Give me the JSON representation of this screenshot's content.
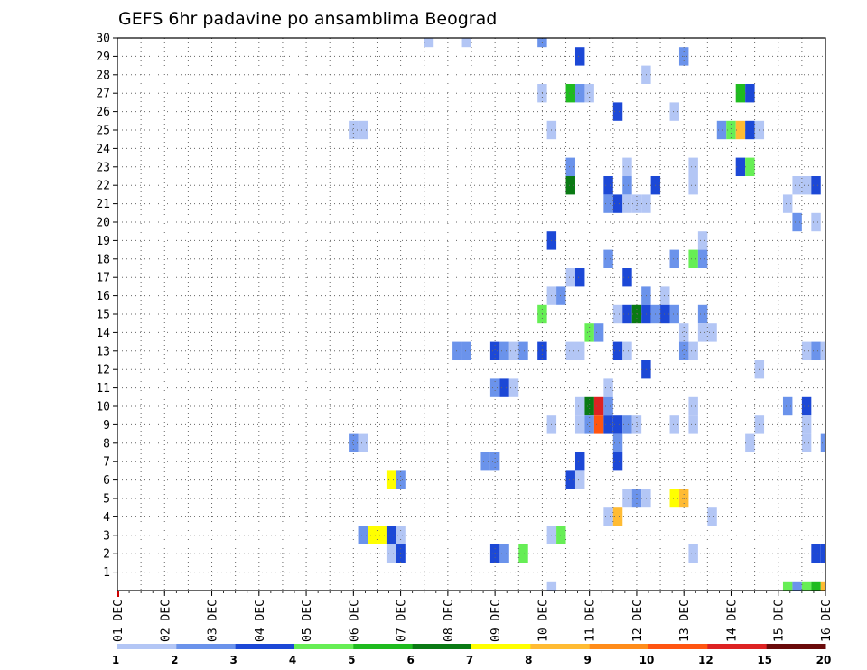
{
  "chart_data": {
    "type": "heatmap",
    "title": "GEFS 6hr padavine po ansamblima Beograd",
    "x_tick_labels": [
      "01 DEC",
      "02 DEC",
      "03 DEC",
      "04 DEC",
      "05 DEC",
      "06 DEC",
      "07 DEC",
      "08 DEC",
      "09 DEC",
      "10 DEC",
      "11 DEC",
      "12 DEC",
      "13 DEC",
      "14 DEC",
      "15 DEC",
      "16 DEC"
    ],
    "y_tick_labels": [
      "1",
      "2",
      "3",
      "4",
      "5",
      "6",
      "7",
      "8",
      "9",
      "10",
      "11",
      "12",
      "13",
      "14",
      "15",
      "16",
      "17",
      "18",
      "19",
      "20",
      "21",
      "22",
      "23",
      "24",
      "25",
      "26",
      "27",
      "28",
      "29",
      "30"
    ],
    "x_range_days": [
      1,
      16
    ],
    "y_range": [
      0,
      30
    ],
    "grid": true,
    "colorbar": {
      "labels": [
        "1",
        "2",
        "3",
        "4",
        "5",
        "6",
        "7",
        "8",
        "9",
        "10",
        "12",
        "15",
        "20"
      ],
      "colors": [
        "#b3c6f5",
        "#6b93eb",
        "#1c48d6",
        "#1c48d6",
        "#66ee55",
        "#1fbb1f",
        "#0a7a14",
        "#ffff00",
        "#ffbb33",
        "#ff8c1a",
        "#ff5511",
        "#dd2222",
        "#9e1414",
        "#6a0a0a"
      ]
    },
    "cells": [
      {
        "x": 7.6,
        "y": 30,
        "level": 1
      },
      {
        "x": 8.4,
        "y": 30,
        "level": 1
      },
      {
        "x": 10.0,
        "y": 30,
        "level": 2
      },
      {
        "x": 10.8,
        "y": 29,
        "level": 3
      },
      {
        "x": 13.0,
        "y": 29,
        "level": 2
      },
      {
        "x": 12.2,
        "y": 28,
        "level": 1
      },
      {
        "x": 10.0,
        "y": 27,
        "level": 1
      },
      {
        "x": 10.6,
        "y": 27,
        "level": 6
      },
      {
        "x": 10.8,
        "y": 27,
        "level": 2
      },
      {
        "x": 11.0,
        "y": 27,
        "level": 1
      },
      {
        "x": 14.2,
        "y": 27,
        "level": 6
      },
      {
        "x": 14.4,
        "y": 27,
        "level": 3
      },
      {
        "x": 11.6,
        "y": 26,
        "level": 4
      },
      {
        "x": 12.8,
        "y": 26,
        "level": 1
      },
      {
        "x": 6.0,
        "y": 25,
        "level": 1
      },
      {
        "x": 6.2,
        "y": 25,
        "level": 1
      },
      {
        "x": 10.2,
        "y": 25,
        "level": 1
      },
      {
        "x": 13.8,
        "y": 25,
        "level": 2
      },
      {
        "x": 14.0,
        "y": 25,
        "level": 5
      },
      {
        "x": 14.2,
        "y": 25,
        "level": 9
      },
      {
        "x": 14.4,
        "y": 25,
        "level": 3
      },
      {
        "x": 14.6,
        "y": 25,
        "level": 1
      },
      {
        "x": 10.6,
        "y": 23,
        "level": 2
      },
      {
        "x": 11.8,
        "y": 23,
        "level": 1
      },
      {
        "x": 13.2,
        "y": 23,
        "level": 1
      },
      {
        "x": 14.2,
        "y": 23,
        "level": 3
      },
      {
        "x": 14.4,
        "y": 23,
        "level": 5
      },
      {
        "x": 10.6,
        "y": 22,
        "level": 7
      },
      {
        "x": 11.4,
        "y": 22,
        "level": 3
      },
      {
        "x": 11.8,
        "y": 22,
        "level": 2
      },
      {
        "x": 12.4,
        "y": 22,
        "level": 3
      },
      {
        "x": 13.2,
        "y": 22,
        "level": 1
      },
      {
        "x": 15.4,
        "y": 22,
        "level": 1
      },
      {
        "x": 15.6,
        "y": 22,
        "level": 1
      },
      {
        "x": 15.8,
        "y": 22,
        "level": 4
      },
      {
        "x": 11.4,
        "y": 21,
        "level": 2
      },
      {
        "x": 11.6,
        "y": 21,
        "level": 3
      },
      {
        "x": 11.8,
        "y": 21,
        "level": 1
      },
      {
        "x": 12.0,
        "y": 21,
        "level": 1
      },
      {
        "x": 12.2,
        "y": 21,
        "level": 1
      },
      {
        "x": 15.2,
        "y": 21,
        "level": 1
      },
      {
        "x": 15.4,
        "y": 20,
        "level": 2
      },
      {
        "x": 15.8,
        "y": 20,
        "level": 1
      },
      {
        "x": 10.2,
        "y": 19,
        "level": 3
      },
      {
        "x": 13.4,
        "y": 19,
        "level": 1
      },
      {
        "x": 11.4,
        "y": 18,
        "level": 2
      },
      {
        "x": 12.8,
        "y": 18,
        "level": 2
      },
      {
        "x": 13.2,
        "y": 18,
        "level": 5
      },
      {
        "x": 13.4,
        "y": 18,
        "level": 2
      },
      {
        "x": 10.6,
        "y": 17,
        "level": 1
      },
      {
        "x": 10.8,
        "y": 17,
        "level": 4
      },
      {
        "x": 11.8,
        "y": 17,
        "level": 3
      },
      {
        "x": 10.2,
        "y": 16,
        "level": 1
      },
      {
        "x": 10.4,
        "y": 16,
        "level": 2
      },
      {
        "x": 12.2,
        "y": 16,
        "level": 2
      },
      {
        "x": 12.6,
        "y": 16,
        "level": 1
      },
      {
        "x": 10.0,
        "y": 15,
        "level": 5
      },
      {
        "x": 11.6,
        "y": 15,
        "level": 1
      },
      {
        "x": 11.8,
        "y": 15,
        "level": 3
      },
      {
        "x": 12.0,
        "y": 15,
        "level": 7
      },
      {
        "x": 12.2,
        "y": 15,
        "level": 4
      },
      {
        "x": 12.4,
        "y": 15,
        "level": 2
      },
      {
        "x": 12.6,
        "y": 15,
        "level": 3
      },
      {
        "x": 12.8,
        "y": 15,
        "level": 2
      },
      {
        "x": 13.4,
        "y": 15,
        "level": 2
      },
      {
        "x": 11.0,
        "y": 14,
        "level": 5
      },
      {
        "x": 11.2,
        "y": 14,
        "level": 2
      },
      {
        "x": 13.0,
        "y": 14,
        "level": 1
      },
      {
        "x": 13.4,
        "y": 14,
        "level": 1
      },
      {
        "x": 13.6,
        "y": 14,
        "level": 1
      },
      {
        "x": 8.2,
        "y": 13,
        "level": 2
      },
      {
        "x": 8.4,
        "y": 13,
        "level": 2
      },
      {
        "x": 9.0,
        "y": 13,
        "level": 4
      },
      {
        "x": 9.2,
        "y": 13,
        "level": 2
      },
      {
        "x": 9.4,
        "y": 13,
        "level": 1
      },
      {
        "x": 9.6,
        "y": 13,
        "level": 2
      },
      {
        "x": 10.0,
        "y": 13,
        "level": 3
      },
      {
        "x": 10.6,
        "y": 13,
        "level": 1
      },
      {
        "x": 10.8,
        "y": 13,
        "level": 1
      },
      {
        "x": 11.6,
        "y": 13,
        "level": 3
      },
      {
        "x": 11.8,
        "y": 13,
        "level": 1
      },
      {
        "x": 13.0,
        "y": 13,
        "level": 2
      },
      {
        "x": 13.2,
        "y": 13,
        "level": 1
      },
      {
        "x": 15.6,
        "y": 13,
        "level": 1
      },
      {
        "x": 15.8,
        "y": 13,
        "level": 2
      },
      {
        "x": 16.0,
        "y": 13,
        "level": 1
      },
      {
        "x": 12.2,
        "y": 12,
        "level": 3
      },
      {
        "x": 14.6,
        "y": 12,
        "level": 1
      },
      {
        "x": 9.0,
        "y": 11,
        "level": 2
      },
      {
        "x": 9.2,
        "y": 11,
        "level": 3
      },
      {
        "x": 9.4,
        "y": 11,
        "level": 1
      },
      {
        "x": 11.4,
        "y": 11,
        "level": 1
      },
      {
        "x": 10.8,
        "y": 10,
        "level": 1
      },
      {
        "x": 11.0,
        "y": 10,
        "level": 7
      },
      {
        "x": 11.2,
        "y": 10,
        "level": 12
      },
      {
        "x": 11.4,
        "y": 10,
        "level": 2
      },
      {
        "x": 13.2,
        "y": 10,
        "level": 1
      },
      {
        "x": 15.2,
        "y": 10,
        "level": 2
      },
      {
        "x": 15.6,
        "y": 10,
        "level": 4
      },
      {
        "x": 10.2,
        "y": 9,
        "level": 1
      },
      {
        "x": 10.8,
        "y": 9,
        "level": 1
      },
      {
        "x": 11.0,
        "y": 9,
        "level": 2
      },
      {
        "x": 11.2,
        "y": 9,
        "level": 11
      },
      {
        "x": 11.4,
        "y": 9,
        "level": 4
      },
      {
        "x": 11.6,
        "y": 9,
        "level": 4
      },
      {
        "x": 11.8,
        "y": 9,
        "level": 2
      },
      {
        "x": 12.0,
        "y": 9,
        "level": 1
      },
      {
        "x": 12.8,
        "y": 9,
        "level": 1
      },
      {
        "x": 13.2,
        "y": 9,
        "level": 1
      },
      {
        "x": 14.6,
        "y": 9,
        "level": 1
      },
      {
        "x": 15.6,
        "y": 9,
        "level": 1
      },
      {
        "x": 6.0,
        "y": 8,
        "level": 2
      },
      {
        "x": 6.2,
        "y": 8,
        "level": 1
      },
      {
        "x": 11.6,
        "y": 8,
        "level": 2
      },
      {
        "x": 14.4,
        "y": 8,
        "level": 1
      },
      {
        "x": 15.6,
        "y": 8,
        "level": 1
      },
      {
        "x": 16.0,
        "y": 8,
        "level": 2
      },
      {
        "x": 8.8,
        "y": 7,
        "level": 2
      },
      {
        "x": 9.0,
        "y": 7,
        "level": 2
      },
      {
        "x": 10.8,
        "y": 7,
        "level": 3
      },
      {
        "x": 11.6,
        "y": 7,
        "level": 3
      },
      {
        "x": 6.8,
        "y": 6,
        "level": 8
      },
      {
        "x": 7.0,
        "y": 6,
        "level": 2
      },
      {
        "x": 10.6,
        "y": 6,
        "level": 3
      },
      {
        "x": 10.8,
        "y": 6,
        "level": 1
      },
      {
        "x": 11.8,
        "y": 5,
        "level": 1
      },
      {
        "x": 12.0,
        "y": 5,
        "level": 2
      },
      {
        "x": 12.2,
        "y": 5,
        "level": 1
      },
      {
        "x": 12.8,
        "y": 5,
        "level": 8
      },
      {
        "x": 13.0,
        "y": 5,
        "level": 9
      },
      {
        "x": 11.4,
        "y": 4,
        "level": 1
      },
      {
        "x": 11.6,
        "y": 4,
        "level": 9
      },
      {
        "x": 13.6,
        "y": 4,
        "level": 1
      },
      {
        "x": 6.2,
        "y": 3,
        "level": 2
      },
      {
        "x": 6.4,
        "y": 3,
        "level": 8
      },
      {
        "x": 6.6,
        "y": 3,
        "level": 8
      },
      {
        "x": 6.8,
        "y": 3,
        "level": 3
      },
      {
        "x": 7.0,
        "y": 3,
        "level": 1
      },
      {
        "x": 10.2,
        "y": 3,
        "level": 1
      },
      {
        "x": 10.4,
        "y": 3,
        "level": 5
      },
      {
        "x": 6.8,
        "y": 2,
        "level": 1
      },
      {
        "x": 7.0,
        "y": 2,
        "level": 3
      },
      {
        "x": 9.0,
        "y": 2,
        "level": 3
      },
      {
        "x": 9.2,
        "y": 2,
        "level": 2
      },
      {
        "x": 9.6,
        "y": 2,
        "level": 5
      },
      {
        "x": 13.2,
        "y": 2,
        "level": 1
      },
      {
        "x": 15.8,
        "y": 2,
        "level": 4
      },
      {
        "x": 16.0,
        "y": 2,
        "level": 3
      },
      {
        "x": 10.2,
        "y": 0,
        "level": 1
      },
      {
        "x": 15.2,
        "y": 0,
        "level": 5
      },
      {
        "x": 15.4,
        "y": 0,
        "level": 2
      },
      {
        "x": 15.6,
        "y": 0,
        "level": 5
      },
      {
        "x": 15.8,
        "y": 0,
        "level": 6
      },
      {
        "x": 16.0,
        "y": 0,
        "level": 9
      }
    ]
  }
}
